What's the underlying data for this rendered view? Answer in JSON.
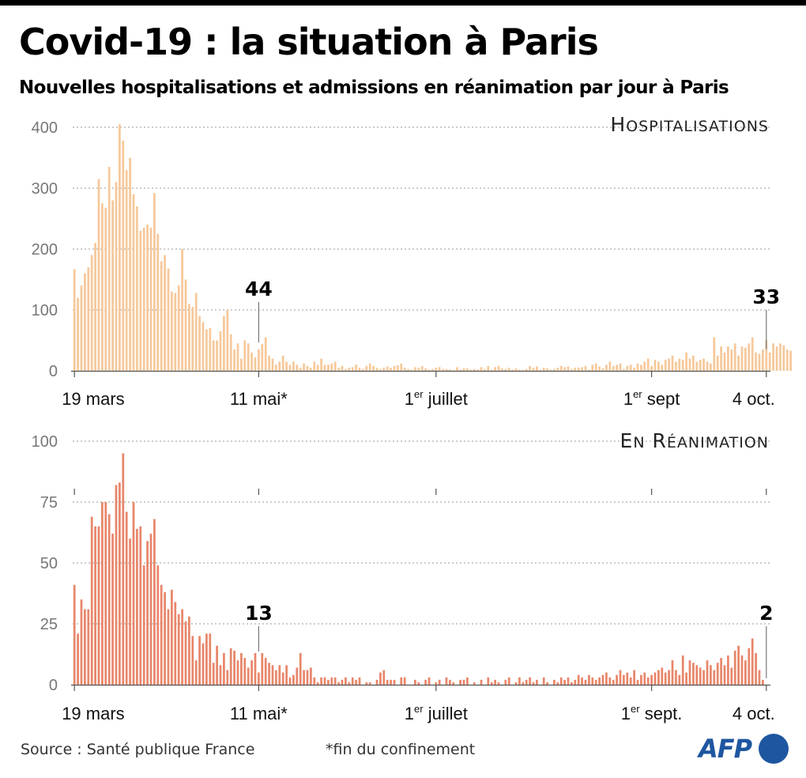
{
  "header": {
    "title": "Covid-19 : la situation à Paris",
    "subtitle": "Nouvelles hospitalisations et admissions en réanimation par jour à Paris"
  },
  "footer": {
    "source": "Source : Santé publique France",
    "note": "*fin du confinement",
    "logo": "AFP"
  },
  "colors": {
    "hospitalisations": "#f6c89a",
    "reanimation": "#e8866a",
    "grid": "#9a9a9a",
    "axis": "#555555",
    "logo": "#1e56a0"
  },
  "chart_data": [
    {
      "type": "bar",
      "title": "Hospitalisations",
      "x_start": "2020-03-19",
      "x_end": "2020-10-04",
      "ylim": [
        0,
        400
      ],
      "yticks": [
        0,
        100,
        200,
        300,
        400
      ],
      "grid": "horizontal dotted",
      "xtick_labels": [
        {
          "date": "2020-03-19",
          "label": "19 mars"
        },
        {
          "date": "2020-05-11",
          "label": "11 mai*"
        },
        {
          "date": "2020-07-01",
          "label": "1",
          "sup": "er",
          "rest": " juillet"
        },
        {
          "date": "2020-09-01",
          "label": "1",
          "sup": "er",
          "rest": " sept"
        },
        {
          "date": "2020-10-04",
          "label": "4 oct."
        }
      ],
      "annotations": [
        {
          "date": "2020-05-11",
          "value": 44,
          "label": "44"
        },
        {
          "date": "2020-10-04",
          "value": 33,
          "label": "33"
        }
      ],
      "values": [
        167,
        120,
        140,
        160,
        170,
        190,
        210,
        315,
        275,
        268,
        335,
        280,
        310,
        405,
        378,
        330,
        350,
        290,
        270,
        230,
        235,
        240,
        235,
        292,
        225,
        180,
        190,
        168,
        130,
        128,
        140,
        200,
        150,
        110,
        105,
        128,
        90,
        80,
        68,
        70,
        50,
        50,
        65,
        90,
        100,
        60,
        35,
        45,
        20,
        50,
        45,
        30,
        22,
        35,
        44,
        55,
        25,
        20,
        10,
        15,
        25,
        15,
        10,
        15,
        10,
        5,
        12,
        8,
        5,
        15,
        10,
        20,
        10,
        10,
        12,
        15,
        5,
        8,
        3,
        5,
        6,
        10,
        5,
        3,
        8,
        12,
        8,
        5,
        3,
        5,
        7,
        5,
        8,
        9,
        12,
        5,
        3,
        2,
        6,
        5,
        8,
        4,
        2,
        3,
        5,
        6,
        3,
        3,
        2,
        1,
        6,
        2,
        4,
        4,
        2,
        3,
        2,
        6,
        3,
        8,
        2,
        6,
        8,
        4,
        3,
        5,
        2,
        4,
        2,
        1,
        3,
        8,
        5,
        7,
        2,
        5,
        4,
        2,
        3,
        5,
        8,
        6,
        7,
        3,
        5,
        5,
        6,
        8,
        2,
        10,
        12,
        7,
        4,
        10,
        15,
        8,
        10,
        12,
        3,
        8,
        10,
        5,
        12,
        10,
        15,
        20,
        8,
        18,
        15,
        10,
        18,
        20,
        25,
        15,
        20,
        18,
        30,
        20,
        25,
        15,
        18,
        20,
        15,
        12,
        55,
        25,
        40,
        30,
        40,
        35,
        45,
        25,
        40,
        38,
        45,
        55,
        30,
        28,
        35,
        50,
        30,
        45,
        40,
        45,
        42,
        35,
        33
      ]
    },
    {
      "type": "bar",
      "title": "En réanimation",
      "x_start": "2020-03-19",
      "x_end": "2020-10-04",
      "ylim": [
        0,
        100
      ],
      "yticks": [
        0,
        25,
        50,
        75,
        100
      ],
      "grid": "horizontal dotted",
      "xtick_labels": [
        {
          "date": "2020-03-19",
          "label": "19 mars"
        },
        {
          "date": "2020-05-11",
          "label": "11 mai*"
        },
        {
          "date": "2020-07-01",
          "label": "1",
          "sup": "er",
          "rest": " juillet"
        },
        {
          "date": "2020-09-01",
          "label": "1",
          "sup": "er",
          "rest": " sept."
        },
        {
          "date": "2020-10-04",
          "label": "4 oct."
        }
      ],
      "annotations": [
        {
          "date": "2020-05-11",
          "value": 13,
          "label": "13"
        },
        {
          "date": "2020-10-04",
          "value": 2,
          "label": "2"
        }
      ],
      "values": [
        41,
        21,
        35,
        31,
        31,
        69,
        65,
        65,
        75,
        75,
        70,
        62,
        82,
        83,
        95,
        71,
        60,
        75,
        64,
        65,
        49,
        59,
        62,
        68,
        49,
        41,
        38,
        31,
        39,
        34,
        29,
        31,
        26,
        28,
        20,
        10,
        20,
        17,
        21,
        21,
        9,
        16,
        8,
        13,
        6,
        15,
        14,
        10,
        13,
        11,
        7,
        10,
        13,
        5,
        13,
        11,
        9,
        8,
        6,
        8,
        5,
        8,
        3,
        4,
        7,
        13,
        6,
        6,
        7,
        3,
        1,
        3,
        3,
        2,
        3,
        3,
        1,
        2,
        3,
        1,
        3,
        2,
        3,
        0,
        1,
        1,
        0,
        2,
        5,
        6,
        2,
        2,
        2,
        0,
        3,
        3,
        0,
        0,
        2,
        1,
        0,
        2,
        3,
        0,
        1,
        2,
        0,
        3,
        2,
        1,
        0,
        2,
        2,
        3,
        0,
        1,
        0,
        2,
        0,
        3,
        1,
        2,
        1,
        0,
        2,
        3,
        0,
        1,
        3,
        1,
        2,
        3,
        1,
        2,
        0,
        3,
        1,
        0,
        2,
        1,
        3,
        2,
        3,
        1,
        2,
        4,
        3,
        2,
        4,
        3,
        2,
        3,
        4,
        5,
        3,
        2,
        4,
        6,
        4,
        5,
        3,
        6,
        2,
        4,
        5,
        3,
        4,
        5,
        6,
        7,
        5,
        6,
        10,
        6,
        4,
        12,
        5,
        10,
        9,
        8,
        7,
        6,
        10,
        8,
        6,
        9,
        11,
        8,
        12,
        7,
        14,
        16,
        12,
        10,
        15,
        19,
        13,
        6,
        2
      ]
    }
  ]
}
